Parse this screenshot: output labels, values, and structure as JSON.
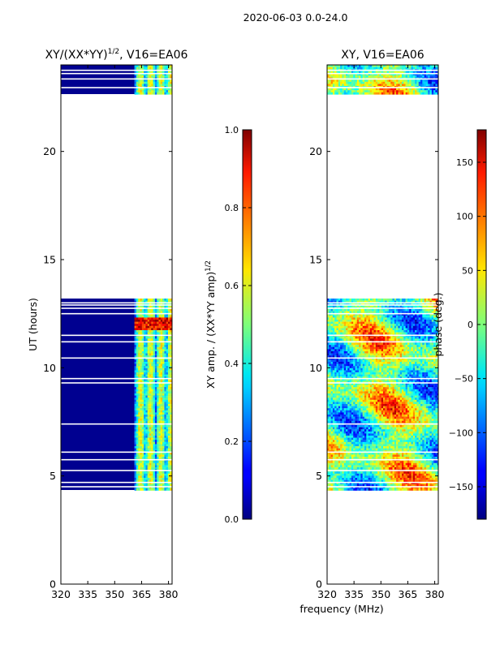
{
  "figure_title": "2020-06-03 0.0-24.0",
  "shared_xlabel": "frequency (MHz)",
  "chart_data": [
    {
      "type": "heatmap",
      "title": "XY/(XX*YY)^{1/2}, V16=EA06",
      "title_main": "XY/(XX*YY)",
      "title_exp": "1/2",
      "title_tail": ", V16=EA06",
      "ylabel": "UT (hours)",
      "xlim": [
        320,
        382
      ],
      "ylim": [
        0,
        24
      ],
      "xticks": [
        320,
        335,
        350,
        365,
        380
      ],
      "yticks": [
        0,
        5,
        10,
        15,
        20
      ],
      "data_rows_hours": [
        [
          4.35,
          13.2
        ],
        [
          22.65,
          24.0
        ]
      ],
      "blank_lines_hours": [
        4.5,
        4.7,
        5.25,
        5.75,
        6.1,
        7.4,
        9.3,
        9.5,
        10.45,
        11.2,
        11.5,
        12.5,
        12.75,
        12.9,
        13.0,
        22.95,
        23.35,
        23.6,
        23.75
      ],
      "bright_band_mhz": [
        361,
        381
      ],
      "colorbar": {
        "label": "XY amp. / (XX*YY amp)^{1/2}",
        "label_main": "XY amp. / (XX*YY amp)",
        "label_exp": "1/2",
        "range": [
          0.0,
          1.0
        ],
        "ticks": [
          "0.0",
          "0.2",
          "0.4",
          "0.6",
          "0.8",
          "1.0"
        ],
        "tick_values": [
          0.0,
          0.2,
          0.4,
          0.6,
          0.8,
          1.0
        ]
      }
    },
    {
      "type": "heatmap",
      "title": "XY, V16=EA06",
      "xlim": [
        320,
        382
      ],
      "ylim": [
        0,
        24
      ],
      "xticks": [
        320,
        335,
        350,
        365,
        380
      ],
      "yticks": [
        0,
        5,
        10,
        15,
        20
      ],
      "data_rows_hours": [
        [
          4.35,
          13.2
        ],
        [
          22.65,
          24.0
        ]
      ],
      "colorbar": {
        "label": "phase (deg.)",
        "range": [
          -180,
          180
        ],
        "ticks": [
          "−150",
          "−100",
          "−50",
          "0",
          "50",
          "100",
          "150"
        ],
        "tick_values": [
          -150,
          -100,
          -50,
          0,
          50,
          100,
          150
        ]
      }
    }
  ]
}
